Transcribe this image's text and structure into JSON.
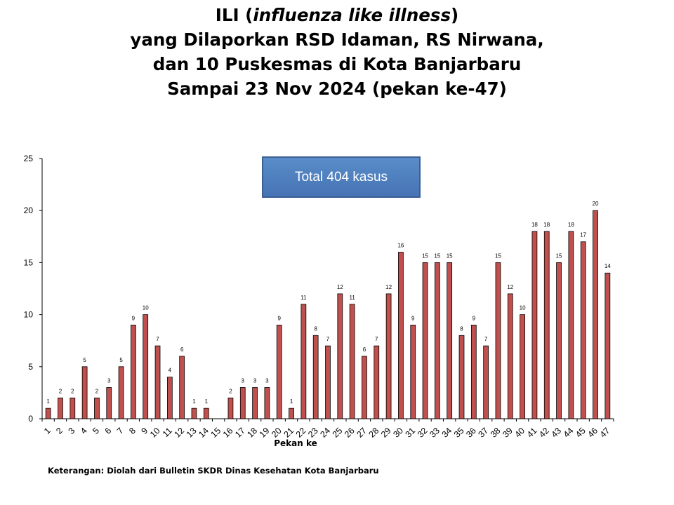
{
  "title": {
    "line1_a": "ILI (",
    "line1_b": "influenza like illness",
    "line1_c": ")",
    "line2": "yang Dilaporkan RSD Idaman, RS Nirwana,",
    "line3": "dan 10 Puskesmas di Kota Banjarbaru",
    "line4": "Sampai 23 Nov 2024 (pekan ke-47)"
  },
  "total_box": "Total 404 kasus",
  "footnote": "Keterangan: Diolah dari Bulletin SKDR Dinas Kesehatan Kota Banjarbaru",
  "colors": {
    "bar_fill": "#c0504d",
    "bar_stroke": "#000000",
    "box_fill": "#4f81bd"
  },
  "chart_data": {
    "type": "bar",
    "xlabel": "Pekan ke",
    "ylabel": "",
    "ylim": [
      0,
      25
    ],
    "yticks": [
      0,
      5,
      10,
      15,
      20,
      25
    ],
    "grid": false,
    "categories": [
      "1",
      "2",
      "3",
      "4",
      "5",
      "6",
      "7",
      "8",
      "9",
      "10",
      "11",
      "12",
      "13",
      "14",
      "15",
      "16",
      "17",
      "18",
      "19",
      "20",
      "21",
      "22",
      "23",
      "24",
      "25",
      "26",
      "27",
      "28",
      "29",
      "30",
      "31",
      "32",
      "33",
      "34",
      "35",
      "36",
      "37",
      "38",
      "39",
      "40",
      "41",
      "42",
      "43",
      "44",
      "45",
      "46",
      "47"
    ],
    "values": [
      1,
      2,
      2,
      5,
      2,
      3,
      5,
      9,
      10,
      7,
      4,
      6,
      1,
      1,
      0,
      2,
      3,
      3,
      3,
      9,
      1,
      11,
      8,
      7,
      12,
      11,
      6,
      7,
      12,
      16,
      9,
      15,
      15,
      15,
      8,
      9,
      7,
      15,
      12,
      10,
      18,
      18,
      15,
      18,
      17,
      20,
      14
    ],
    "value_labels": [
      "1",
      "2",
      "2",
      "5",
      "2",
      "3",
      "5",
      "9",
      "10",
      "7",
      "4",
      "6",
      "1",
      "1",
      "",
      "2",
      "3",
      "3",
      "3",
      "9",
      "1",
      "11",
      "8",
      "7",
      "12",
      "11",
      "6",
      "7",
      "12",
      "16",
      "9",
      "15",
      "15",
      "15",
      "8",
      "9",
      "7",
      "15",
      "12",
      "10",
      "18",
      "18",
      "15",
      "18",
      "17",
      "20",
      "14"
    ]
  }
}
